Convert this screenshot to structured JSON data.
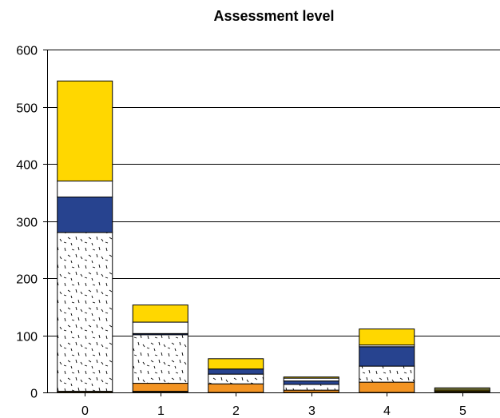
{
  "chart_data": {
    "type": "bar",
    "stacked": true,
    "title": "Assessment level",
    "xlabel": "",
    "ylabel": "",
    "categories": [
      "0",
      "1",
      "2",
      "3",
      "4",
      "5"
    ],
    "ylim": [
      0,
      600
    ],
    "yticks": [
      0,
      100,
      200,
      300,
      400,
      500,
      600
    ],
    "grid": "horizontal",
    "legend": "none",
    "series": [
      {
        "values": [
          2,
          2,
          0,
          0,
          0,
          2
        ],
        "color": "#7a5c1e",
        "pattern": "solid"
      },
      {
        "values": [
          0,
          14,
          15,
          4,
          18,
          0
        ],
        "color": "#f39423",
        "pattern": "solid"
      },
      {
        "values": [
          278,
          85,
          17,
          10,
          28,
          0
        ],
        "color": "#ffffff",
        "pattern": "dash-stipple"
      },
      {
        "values": [
          62,
          2,
          9,
          6,
          34,
          0
        ],
        "color": "#27438f",
        "pattern": "solid"
      },
      {
        "values": [
          28,
          20,
          0,
          5,
          3,
          0
        ],
        "color": "#ffffff",
        "pattern": "solid"
      },
      {
        "values": [
          175,
          30,
          18,
          2,
          28,
          2
        ],
        "color": "#ffd700",
        "pattern": "solid"
      },
      {
        "values": [
          0,
          0,
          0,
          0,
          0,
          4
        ],
        "color": "#808040",
        "pattern": "solid"
      }
    ]
  }
}
